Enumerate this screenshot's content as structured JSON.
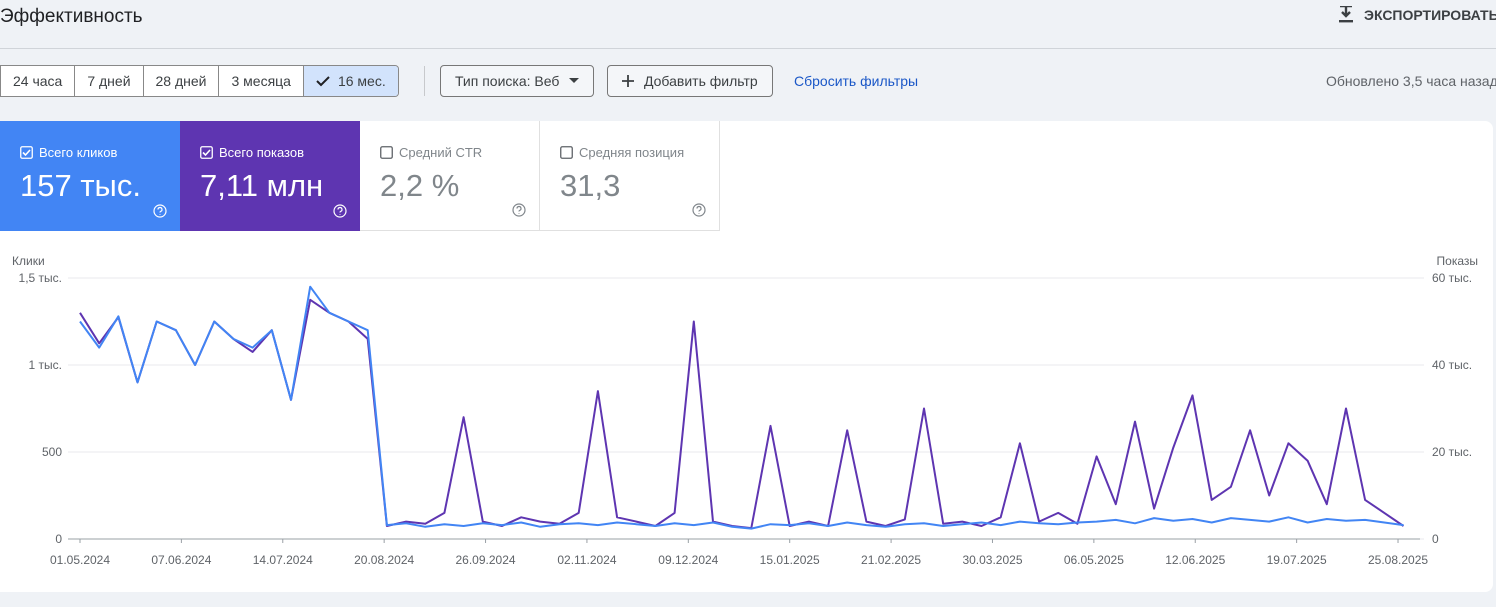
{
  "header": {
    "title": "Эффективность",
    "export": "ЭКСПОРТИРОВАТЬ"
  },
  "toolbar": {
    "ranges": [
      "24 часа",
      "7 дней",
      "28 дней",
      "3 месяца",
      "16 мес."
    ],
    "selected": 4,
    "search_type": "Тип поиска: Веб",
    "add_filter": "Добавить фильтр",
    "reset": "Сбросить фильтры",
    "updated": "Обновлено 3,5 часа назад"
  },
  "metrics": [
    {
      "label": "Всего кликов",
      "value": "157 тыс.",
      "checked": true,
      "color": "#4285f4"
    },
    {
      "label": "Всего показов",
      "value": "7,11 млн",
      "checked": true,
      "color": "#5e35b1"
    },
    {
      "label": "Средний CTR",
      "value": "2,2 %",
      "checked": false
    },
    {
      "label": "Средняя позиция",
      "value": "31,3",
      "checked": false
    }
  ],
  "chart_data": {
    "type": "line",
    "y_label": "Клики",
    "y2_label": "Показы",
    "x": [
      "01.05.2024",
      "08.05.2024",
      "15.05.2024",
      "22.05.2024",
      "29.05.2024",
      "05.06.2024",
      "12.06.2024",
      "19.06.2024",
      "26.06.2024",
      "03.07.2024",
      "10.07.2024",
      "17.07.2024",
      "24.07.2024",
      "31.07.2024",
      "07.08.2024",
      "14.08.2024",
      "21.08.2024",
      "28.08.2024",
      "04.09.2024",
      "11.09.2024",
      "18.09.2024",
      "25.09.2024",
      "02.10.2024",
      "09.10.2024",
      "16.10.2024",
      "23.10.2024",
      "30.10.2024",
      "06.11.2024",
      "13.11.2024",
      "20.11.2024",
      "27.11.2024",
      "04.12.2024",
      "11.12.2024",
      "18.12.2024",
      "25.12.2024",
      "01.01.2025",
      "08.01.2025",
      "15.01.2025",
      "22.01.2025",
      "29.01.2025",
      "05.02.2025",
      "12.02.2025",
      "19.02.2025",
      "26.02.2025",
      "05.03.2025",
      "12.03.2025",
      "19.03.2025",
      "26.03.2025",
      "02.04.2025",
      "09.04.2025",
      "16.04.2025",
      "23.04.2025",
      "30.04.2025",
      "07.05.2025",
      "14.05.2025",
      "21.05.2025",
      "28.05.2025",
      "04.06.2025",
      "11.06.2025",
      "18.06.2025",
      "25.06.2025",
      "02.07.2025",
      "09.07.2025",
      "16.07.2025",
      "23.07.2025",
      "30.07.2025",
      "06.08.2025",
      "13.08.2025",
      "20.08.2025",
      "27.08.2025"
    ],
    "xlim": [
      "01.05.2024",
      "27.08.2025"
    ],
    "xticks": [
      "01.05.2024",
      "07.06.2024",
      "14.07.2024",
      "20.08.2024",
      "26.09.2024",
      "02.11.2024",
      "09.12.2024",
      "15.01.2025",
      "21.02.2025",
      "30.03.2025",
      "06.05.2025",
      "12.06.2025",
      "19.07.2025",
      "25.08.2025"
    ],
    "ylim": [
      0,
      1500
    ],
    "yticks": [
      0,
      500,
      {
        "value": 1000,
        "label": "1 тыс."
      },
      {
        "value": 1500,
        "label": "1,5 тыс."
      }
    ],
    "y2lim": [
      0,
      60000
    ],
    "y2ticks": [
      0,
      {
        "value": 20000,
        "label": "20 тыс."
      },
      {
        "value": 40000,
        "label": "40 тыс."
      },
      {
        "value": 60000,
        "label": "60 тыс."
      }
    ],
    "grid": true,
    "series": [
      {
        "name": "Всего показов",
        "color": "#5e35b1",
        "axis": "y2",
        "values": [
          52000,
          45000,
          51000,
          36000,
          50000,
          48000,
          40000,
          50000,
          46000,
          43000,
          48000,
          32000,
          55000,
          52000,
          50000,
          46000,
          3000,
          4000,
          3500,
          6000,
          28000,
          4000,
          3000,
          5000,
          4000,
          3500,
          6000,
          34000,
          5000,
          4000,
          3000,
          6000,
          50000,
          4000,
          3000,
          2500,
          26000,
          3000,
          4000,
          3000,
          25000,
          4000,
          3000,
          4500,
          30000,
          3500,
          4000,
          3000,
          5000,
          22000,
          4000,
          6000,
          3500,
          19000,
          8000,
          27000,
          7000,
          21000,
          33000,
          9000,
          12000,
          25000,
          10000,
          22000,
          18000,
          8000,
          30000,
          9000,
          6000,
          3000
        ]
      },
      {
        "name": "Всего кликов",
        "color": "#4285f4",
        "values": [
          1250,
          1100,
          1280,
          900,
          1250,
          1200,
          1000,
          1250,
          1150,
          1100,
          1200,
          800,
          1450,
          1300,
          1250,
          1200,
          80,
          90,
          70,
          85,
          75,
          90,
          80,
          95,
          70,
          85,
          90,
          80,
          95,
          85,
          75,
          90,
          80,
          95,
          70,
          60,
          85,
          80,
          90,
          75,
          95,
          80,
          70,
          85,
          90,
          75,
          85,
          95,
          80,
          100,
          90,
          85,
          95,
          100,
          110,
          90,
          120,
          105,
          115,
          95,
          120,
          110,
          100,
          125,
          95,
          115,
          105,
          110,
          95,
          80
        ]
      }
    ]
  }
}
